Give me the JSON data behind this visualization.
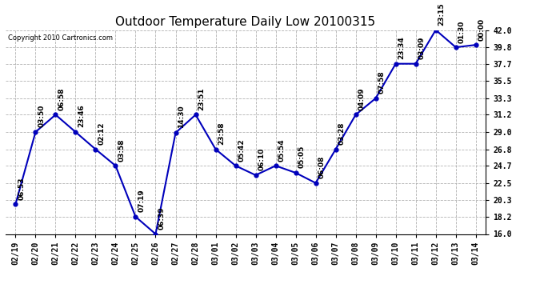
{
  "title": "Outdoor Temperature Daily Low 20100315",
  "copyright": "Copyright 2010 Cartronics.com",
  "dates": [
    "02/19",
    "02/20",
    "02/21",
    "02/22",
    "02/23",
    "02/24",
    "02/25",
    "02/26",
    "02/27",
    "02/28",
    "03/01",
    "03/02",
    "03/03",
    "03/04",
    "03/05",
    "03/06",
    "03/07",
    "03/08",
    "03/09",
    "03/10",
    "03/11",
    "03/12",
    "03/13",
    "03/14"
  ],
  "temps": [
    19.8,
    29.0,
    31.2,
    29.0,
    26.8,
    24.7,
    18.2,
    16.0,
    28.9,
    31.2,
    26.8,
    24.7,
    23.5,
    24.7,
    23.8,
    22.5,
    26.8,
    31.2,
    33.3,
    37.7,
    37.7,
    42.0,
    39.8,
    40.1
  ],
  "times": [
    "06:53",
    "03:50",
    "06:58",
    "23:46",
    "02:12",
    "03:58",
    "07:19",
    "06:39",
    "14:30",
    "23:51",
    "23:58",
    "05:42",
    "06:10",
    "05:54",
    "05:05",
    "06:08",
    "03:28",
    "04:09",
    "07:58",
    "23:34",
    "03:09",
    "23:15",
    "01:30",
    "00:00"
  ],
  "ylim": [
    16.0,
    42.0
  ],
  "yticks": [
    16.0,
    18.2,
    20.3,
    22.5,
    24.7,
    26.8,
    29.0,
    31.2,
    33.3,
    35.5,
    37.7,
    39.8,
    42.0
  ],
  "line_color": "#0000bb",
  "marker_color": "#0000bb",
  "bg_color": "#ffffff",
  "grid_color": "#aaaaaa",
  "title_fontsize": 11,
  "label_fontsize": 7,
  "annotation_fontsize": 6.5,
  "copyright_fontsize": 6
}
